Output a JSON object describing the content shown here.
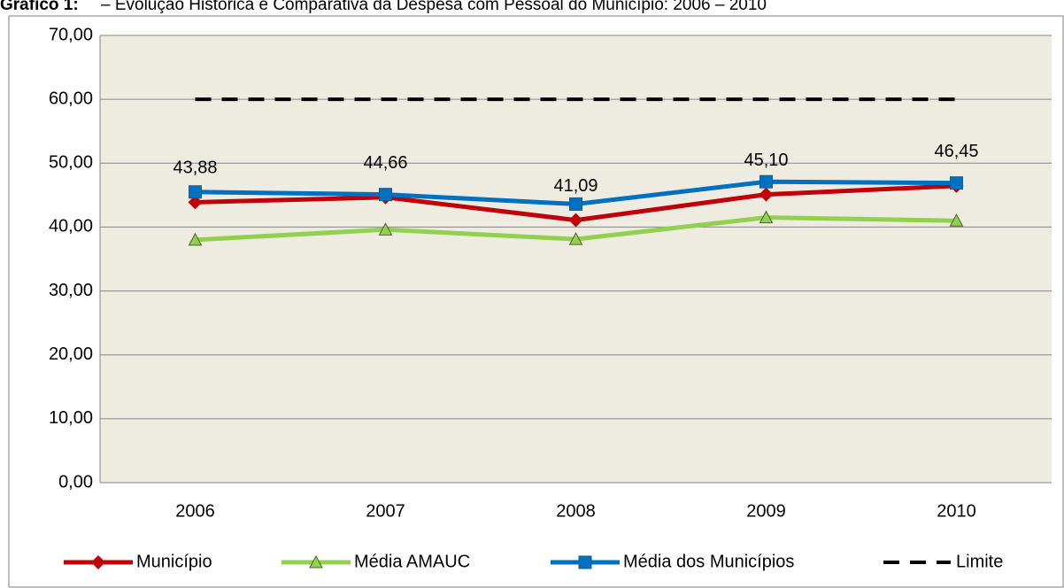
{
  "chart_data": {
    "type": "line",
    "title_label": "Gráfico 1:",
    "title": "– Evolução Histórica e Comparativa da Despesa com Pessoal do Município: 2006 – 2010",
    "categories": [
      "2006",
      "2007",
      "2008",
      "2009",
      "2010"
    ],
    "series": [
      {
        "name": "Município",
        "color": "#c0000b",
        "marker": "diamond",
        "values": [
          43.88,
          44.66,
          41.09,
          45.1,
          46.45
        ],
        "value_labels": [
          "43,88",
          "44,66",
          "41,09",
          "45,10",
          "46,45"
        ]
      },
      {
        "name": "Média AMAUC",
        "color": "#92d050",
        "marker": "triangle",
        "values": [
          38.0,
          39.6,
          38.1,
          41.5,
          41.0
        ]
      },
      {
        "name": "Média dos Municípios",
        "color": "#0070c0",
        "marker": "square",
        "values": [
          45.5,
          45.1,
          43.6,
          47.1,
          46.9
        ]
      },
      {
        "name": "Limite",
        "color": "#000000",
        "dashed": true,
        "values": [
          60,
          60,
          60,
          60,
          60
        ]
      }
    ],
    "ylim": [
      0,
      70
    ],
    "yticks": [
      {
        "value": 0,
        "label": "0,00"
      },
      {
        "value": 10,
        "label": "10,00"
      },
      {
        "value": 20,
        "label": "20,00"
      },
      {
        "value": 30,
        "label": "30,00"
      },
      {
        "value": 40,
        "label": "40,00"
      },
      {
        "value": 50,
        "label": "50,00"
      },
      {
        "value": 60,
        "label": "60,00"
      },
      {
        "value": 70,
        "label": "70,00"
      }
    ],
    "grid": true,
    "legend": "bottom",
    "plot_background": "#eeece1"
  }
}
